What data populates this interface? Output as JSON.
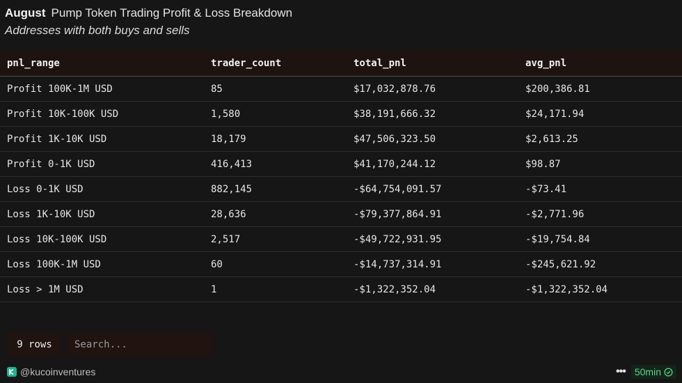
{
  "header": {
    "month": "August",
    "title": "Pump Token Trading Profit & Loss Breakdown",
    "subtitle": "Addresses with both buys and sells"
  },
  "table": {
    "columns": [
      "pnl_range",
      "trader_count",
      "total_pnl",
      "avg_pnl"
    ],
    "rows": [
      [
        "Profit 100K-1M USD",
        "85",
        "$17,032,878.76",
        "$200,386.81"
      ],
      [
        "Profit 10K-100K USD",
        "1,580",
        "$38,191,666.32",
        "$24,171.94"
      ],
      [
        "Profit 1K-10K USD",
        "18,179",
        "$47,506,323.50",
        "$2,613.25"
      ],
      [
        "Profit 0-1K USD",
        "416,413",
        "$41,170,244.12",
        "$98.87"
      ],
      [
        "Loss 0-1K USD",
        "882,145",
        "-$64,754,091.57",
        "-$73.41"
      ],
      [
        "Loss 1K-10K USD",
        "28,636",
        "-$79,377,864.91",
        "-$2,771.96"
      ],
      [
        "Loss 10K-100K USD",
        "2,517",
        "-$49,722,931.95",
        "-$19,754.84"
      ],
      [
        "Loss 100K-1M USD",
        "60",
        "-$14,737,314.91",
        "-$245,621.92"
      ],
      [
        "Loss > 1M USD",
        "1",
        "-$1,322,352.04",
        "-$1,322,352.04"
      ]
    ]
  },
  "controls": {
    "row_count": "9 rows",
    "search_placeholder": "Search..."
  },
  "footer": {
    "author": "@kucoinventures",
    "more_icon": "more-horizontal-icon",
    "refresh_label": "50min",
    "accent_color": "#5fd28a"
  }
}
